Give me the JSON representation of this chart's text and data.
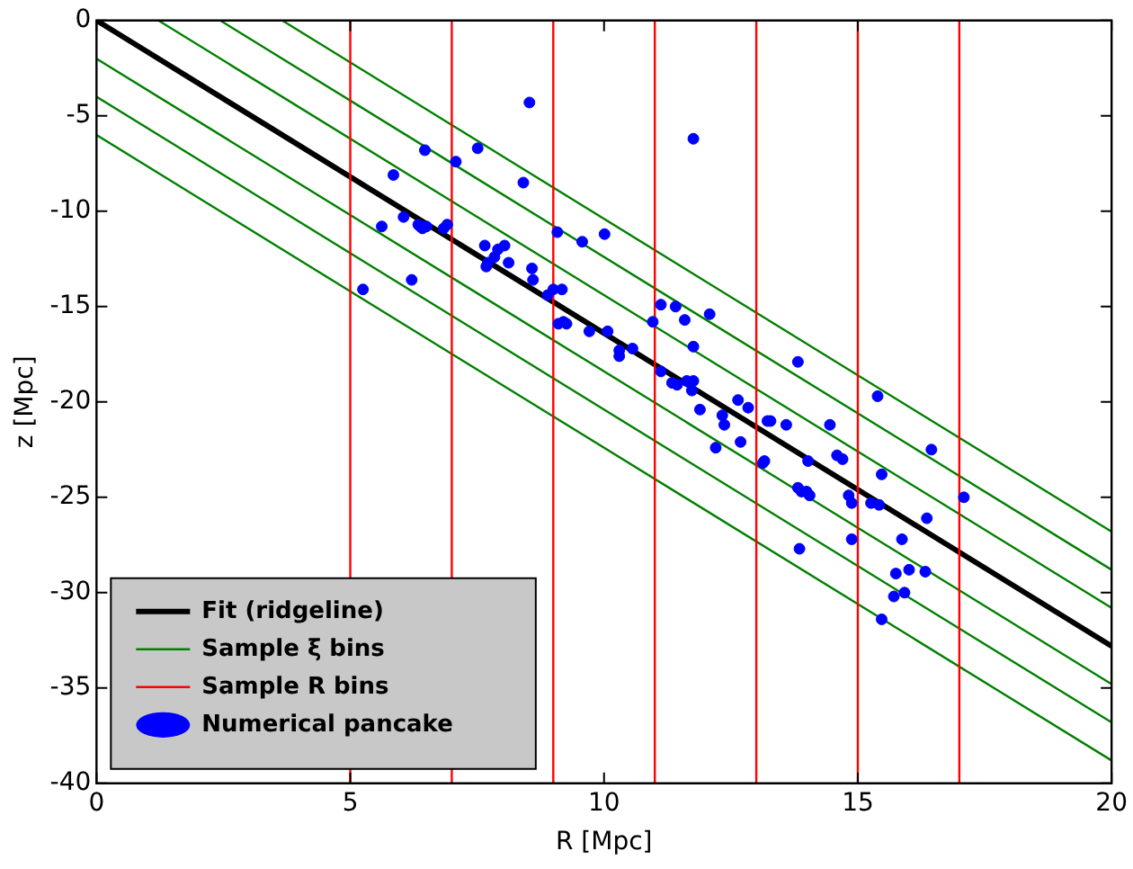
{
  "chart_data": {
    "type": "scatter",
    "xlabel": "R [Mpc]",
    "ylabel": "z [Mpc]",
    "xlim": [
      0,
      20
    ],
    "ylim": [
      -40,
      0
    ],
    "xticks": [
      0,
      5,
      10,
      15,
      20
    ],
    "yticks": [
      -40,
      -35,
      -30,
      -25,
      -20,
      -15,
      -10,
      -5,
      0
    ],
    "grid": false,
    "legend": "bottom left",
    "series": [
      {
        "name": "Fit (ridgeline)",
        "type": "line",
        "color": "#000000",
        "x": [
          0,
          20
        ],
        "values": [
          0,
          -32.8
        ]
      },
      {
        "name": "Sample ξ bins",
        "type": "line",
        "color": "#008000",
        "x": [
          3.66,
          20
        ],
        "values": [
          0,
          -26.8
        ]
      },
      {
        "type": "line",
        "color": "#008000",
        "x": [
          2.44,
          20
        ],
        "values": [
          0,
          -28.8
        ]
      },
      {
        "type": "line",
        "color": "#008000",
        "x": [
          1.22,
          20
        ],
        "values": [
          0,
          -30.8
        ]
      },
      {
        "type": "line",
        "color": "#008000",
        "x": [
          0,
          20
        ],
        "values": [
          -2,
          -34.8
        ]
      },
      {
        "type": "line",
        "color": "#008000",
        "x": [
          0,
          20
        ],
        "values": [
          -4,
          -36.8
        ]
      },
      {
        "type": "line",
        "color": "#008000",
        "x": [
          0,
          20
        ],
        "values": [
          -6,
          -38.8
        ]
      },
      {
        "name": "Sample R bins",
        "type": "line",
        "color": "#ff0000",
        "x": [
          5,
          5
        ],
        "values": [
          0,
          -40
        ]
      },
      {
        "type": "line",
        "color": "#ff0000",
        "x": [
          7,
          7
        ],
        "values": [
          0,
          -40
        ]
      },
      {
        "type": "line",
        "color": "#ff0000",
        "x": [
          9,
          9
        ],
        "values": [
          0,
          -40
        ]
      },
      {
        "type": "line",
        "color": "#ff0000",
        "x": [
          11,
          11
        ],
        "values": [
          0,
          -40
        ]
      },
      {
        "type": "line",
        "color": "#ff0000",
        "x": [
          13,
          13
        ],
        "values": [
          0,
          -40
        ]
      },
      {
        "type": "line",
        "color": "#ff0000",
        "x": [
          15,
          15
        ],
        "values": [
          0,
          -40
        ]
      },
      {
        "type": "line",
        "color": "#ff0000",
        "x": [
          17,
          17
        ],
        "values": [
          0,
          -40
        ]
      },
      {
        "name": "Numerical pancake",
        "color": "#0000ff",
        "marker": "circle",
        "x": [
          5.25,
          5.62,
          5.85,
          6.05,
          6.21,
          6.34,
          6.38,
          6.42,
          6.47,
          6.5,
          6.84,
          6.91,
          7.08,
          7.51,
          7.65,
          7.68,
          7.71,
          7.84,
          7.91,
          8.04,
          8.12,
          8.41,
          8.53,
          8.58,
          8.6,
          8.89,
          9.0,
          9.08,
          9.17,
          9.1,
          9.2,
          9.26,
          9.57,
          9.71,
          10.01,
          10.07,
          10.3,
          10.3,
          10.56,
          10.96,
          11.12,
          11.12,
          11.41,
          11.34,
          11.44,
          11.59,
          11.63,
          11.76,
          11.76,
          11.76,
          11.73,
          11.89,
          12.08,
          12.2,
          12.33,
          12.37,
          12.64,
          12.69,
          12.84,
          13.13,
          13.16,
          13.22,
          13.28,
          13.59,
          13.82,
          13.82,
          13.89,
          13.85,
          14.02,
          13.99,
          14.05,
          14.45,
          14.59,
          14.7,
          14.82,
          14.88,
          14.88,
          15.26,
          15.39,
          15.42,
          15.47,
          15.47,
          15.71,
          15.75,
          15.87,
          15.92,
          16.01,
          16.33,
          16.36,
          16.45,
          17.09
        ],
        "values": [
          -14.1,
          -10.8,
          -8.1,
          -10.3,
          -13.6,
          -10.7,
          -10.8,
          -10.9,
          -6.8,
          -10.8,
          -10.9,
          -10.7,
          -7.4,
          -6.7,
          -11.8,
          -12.9,
          -12.7,
          -12.4,
          -12.0,
          -11.8,
          -12.7,
          -8.5,
          -4.3,
          -13.0,
          -13.6,
          -14.4,
          -14.1,
          -11.1,
          -14.1,
          -15.9,
          -15.8,
          -15.9,
          -11.6,
          -16.3,
          -11.2,
          -16.3,
          -17.3,
          -17.6,
          -17.2,
          -15.8,
          -14.9,
          -18.4,
          -15.0,
          -19.0,
          -19.1,
          -15.7,
          -18.9,
          -18.9,
          -6.2,
          -17.1,
          -19.4,
          -20.4,
          -15.4,
          -22.4,
          -20.7,
          -21.2,
          -19.9,
          -22.1,
          -20.3,
          -23.2,
          -23.1,
          -21.0,
          -21.0,
          -21.2,
          -17.9,
          -24.5,
          -24.7,
          -27.7,
          -23.1,
          -24.7,
          -24.9,
          -21.2,
          -22.8,
          -23.0,
          -24.9,
          -25.3,
          -27.2,
          -25.3,
          -19.7,
          -25.4,
          -23.8,
          -31.4,
          -30.2,
          -29.0,
          -27.2,
          -30.0,
          -28.8,
          -28.9,
          -26.1,
          -22.5,
          -25.0
        ]
      }
    ]
  }
}
